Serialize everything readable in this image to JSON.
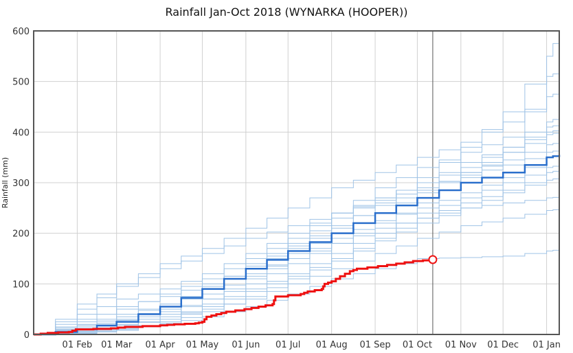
{
  "chart_data": {
    "type": "line",
    "title": "Rainfall Jan-Oct 2018 (WYNARKA (HOOPER))",
    "ylabel": "Rainfall (mm)",
    "xlabel": "",
    "ylim": [
      0,
      600
    ],
    "xlim_days": [
      0,
      374
    ],
    "yticks": [
      0,
      100,
      200,
      300,
      400,
      500,
      600
    ],
    "xticks": [
      {
        "day": 31,
        "label": "01 Feb"
      },
      {
        "day": 59,
        "label": "01 Mar"
      },
      {
        "day": 90,
        "label": "01 Apr"
      },
      {
        "day": 120,
        "label": "01 May"
      },
      {
        "day": 151,
        "label": "01 Jun"
      },
      {
        "day": 181,
        "label": "01 Jul"
      },
      {
        "day": 212,
        "label": "01 Aug"
      },
      {
        "day": 243,
        "label": "01 Sep"
      },
      {
        "day": 273,
        "label": "01 Oct"
      },
      {
        "day": 304,
        "label": "01 Nov"
      },
      {
        "day": 334,
        "label": "01 Dec"
      },
      {
        "day": 365,
        "label": "01 Jan"
      }
    ],
    "grid": true,
    "current_day": 284,
    "colors": {
      "current": "#ee1111",
      "median": "#2a6fcc",
      "ensemble": "#9fc3e6"
    },
    "ensemble_days": [
      0,
      31,
      59,
      90,
      120,
      151,
      181,
      212,
      243,
      273,
      304,
      334,
      365,
      374
    ],
    "ensemble": [
      [
        0,
        5,
        20,
        40,
        70,
        100,
        140,
        180,
        220,
        260,
        310,
        360,
        420,
        430
      ],
      [
        0,
        15,
        30,
        50,
        90,
        140,
        180,
        230,
        270,
        300,
        340,
        370,
        400,
        405
      ],
      [
        0,
        60,
        100,
        140,
        170,
        210,
        250,
        290,
        320,
        350,
        380,
        420,
        470,
        480
      ],
      [
        0,
        3,
        10,
        25,
        60,
        90,
        120,
        160,
        200,
        240,
        270,
        300,
        330,
        335
      ],
      [
        0,
        10,
        25,
        45,
        70,
        110,
        150,
        180,
        210,
        230,
        250,
        260,
        270,
        272
      ],
      [
        0,
        20,
        40,
        60,
        90,
        130,
        170,
        210,
        260,
        310,
        370,
        440,
        550,
        600
      ],
      [
        0,
        8,
        18,
        30,
        50,
        70,
        100,
        130,
        160,
        190,
        215,
        230,
        245,
        248
      ],
      [
        0,
        30,
        50,
        80,
        110,
        150,
        190,
        240,
        290,
        330,
        360,
        390,
        410,
        415
      ],
      [
        0,
        5,
        12,
        20,
        35,
        55,
        80,
        110,
        130,
        150,
        152,
        155,
        165,
        168
      ],
      [
        0,
        12,
        28,
        55,
        95,
        135,
        175,
        215,
        255,
        285,
        320,
        345,
        375,
        380
      ],
      [
        0,
        40,
        70,
        90,
        120,
        160,
        200,
        240,
        270,
        300,
        330,
        370,
        510,
        520
      ],
      [
        0,
        6,
        15,
        35,
        55,
        85,
        115,
        150,
        190,
        230,
        260,
        285,
        305,
        310
      ],
      [
        0,
        25,
        55,
        75,
        100,
        120,
        150,
        190,
        225,
        250,
        280,
        310,
        350,
        355
      ],
      [
        0,
        2,
        8,
        22,
        45,
        75,
        110,
        145,
        185,
        220,
        250,
        280,
        320,
        325
      ],
      [
        0,
        18,
        35,
        60,
        80,
        115,
        160,
        200,
        240,
        280,
        320,
        360,
        395,
        400
      ],
      [
        0,
        50,
        95,
        130,
        160,
        190,
        215,
        240,
        265,
        290,
        315,
        335,
        360,
        365
      ]
    ],
    "median": {
      "days": [
        0,
        31,
        59,
        90,
        120,
        151,
        181,
        212,
        243,
        273,
        304,
        334,
        365,
        374
      ],
      "values": [
        0,
        10,
        25,
        55,
        90,
        130,
        165,
        200,
        240,
        270,
        300,
        320,
        350,
        355
      ]
    },
    "current_year": {
      "days": [
        0,
        10,
        25,
        30,
        55,
        65,
        90,
        100,
        115,
        120,
        123,
        130,
        137,
        150,
        160,
        170,
        172,
        190,
        195,
        205,
        207,
        212,
        218,
        225,
        230,
        245,
        258,
        270,
        284
      ],
      "values": [
        0,
        3,
        5,
        10,
        12,
        15,
        18,
        20,
        22,
        25,
        35,
        40,
        45,
        50,
        55,
        60,
        75,
        80,
        85,
        90,
        100,
        105,
        115,
        125,
        130,
        135,
        140,
        145,
        148
      ]
    }
  }
}
